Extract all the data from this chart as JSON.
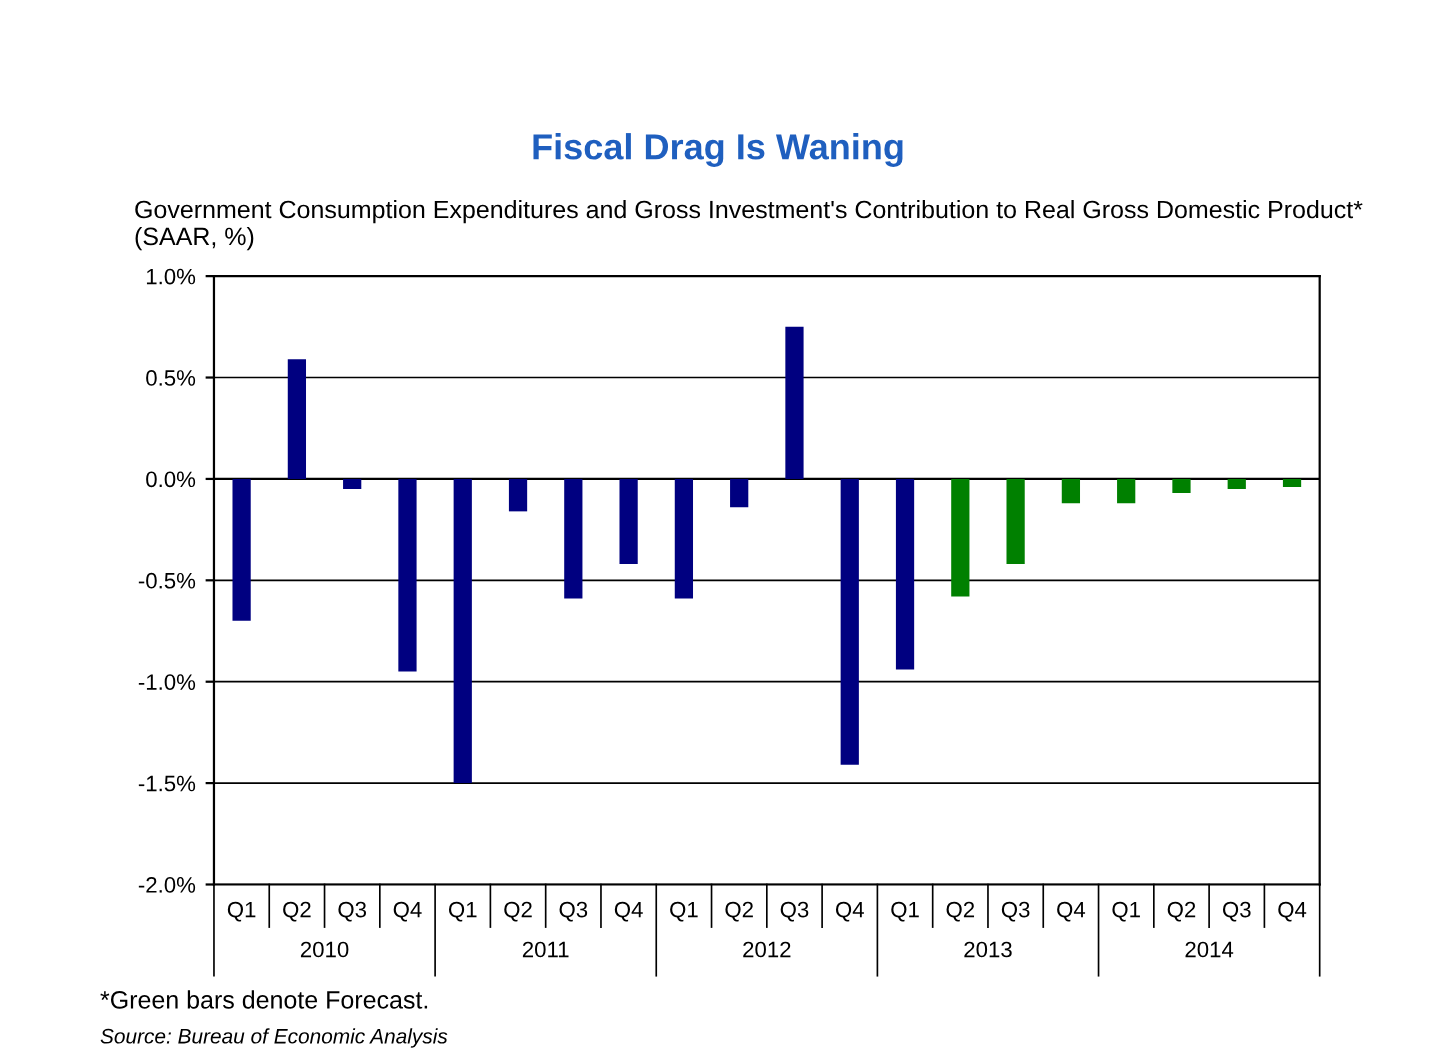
{
  "chart_data": {
    "type": "bar",
    "title": "Fiscal Drag Is Waning",
    "subtitle": "Government Consumption Expenditures and Gross Investment's Contribution to Real Gross Domestic Product* (SAAR, %)",
    "categories": [
      "Q1",
      "Q2",
      "Q3",
      "Q4",
      "Q1",
      "Q2",
      "Q3",
      "Q4",
      "Q1",
      "Q2",
      "Q3",
      "Q4",
      "Q1",
      "Q2",
      "Q3",
      "Q4",
      "Q1",
      "Q2",
      "Q3",
      "Q4"
    ],
    "values": [
      -0.7,
      0.59,
      -0.05,
      -0.95,
      -1.5,
      -0.16,
      -0.59,
      -0.42,
      -0.59,
      -0.14,
      0.75,
      -1.41,
      -0.94,
      -0.58,
      -0.42,
      -0.12,
      -0.12,
      -0.07,
      -0.05,
      -0.04
    ],
    "colors": [
      "#000080",
      "#000080",
      "#000080",
      "#000080",
      "#000080",
      "#000080",
      "#000080",
      "#000080",
      "#000080",
      "#000080",
      "#000080",
      "#000080",
      "#000080",
      "#008000",
      "#008000",
      "#008000",
      "#008000",
      "#008000",
      "#008000",
      "#008000"
    ],
    "ylim": [
      -2.0,
      1.0
    ],
    "yticks": [
      {
        "value": -2.0,
        "label": "-2.0%"
      },
      {
        "value": -1.5,
        "label": "-1.5%"
      },
      {
        "value": -1.0,
        "label": "-1.0%"
      },
      {
        "value": -0.5,
        "label": "-0.5%"
      },
      {
        "value": 0.0,
        "label": "0.0%"
      },
      {
        "value": 0.5,
        "label": "0.5%"
      },
      {
        "value": 1.0,
        "label": "1.0%"
      }
    ],
    "grid": "y",
    "annotations": [
      "2010",
      "2011",
      "2012",
      "2013",
      "2014",
      "*Green bars denote Forecast.",
      "Source: Bureau of Economic Analysis"
    ]
  }
}
